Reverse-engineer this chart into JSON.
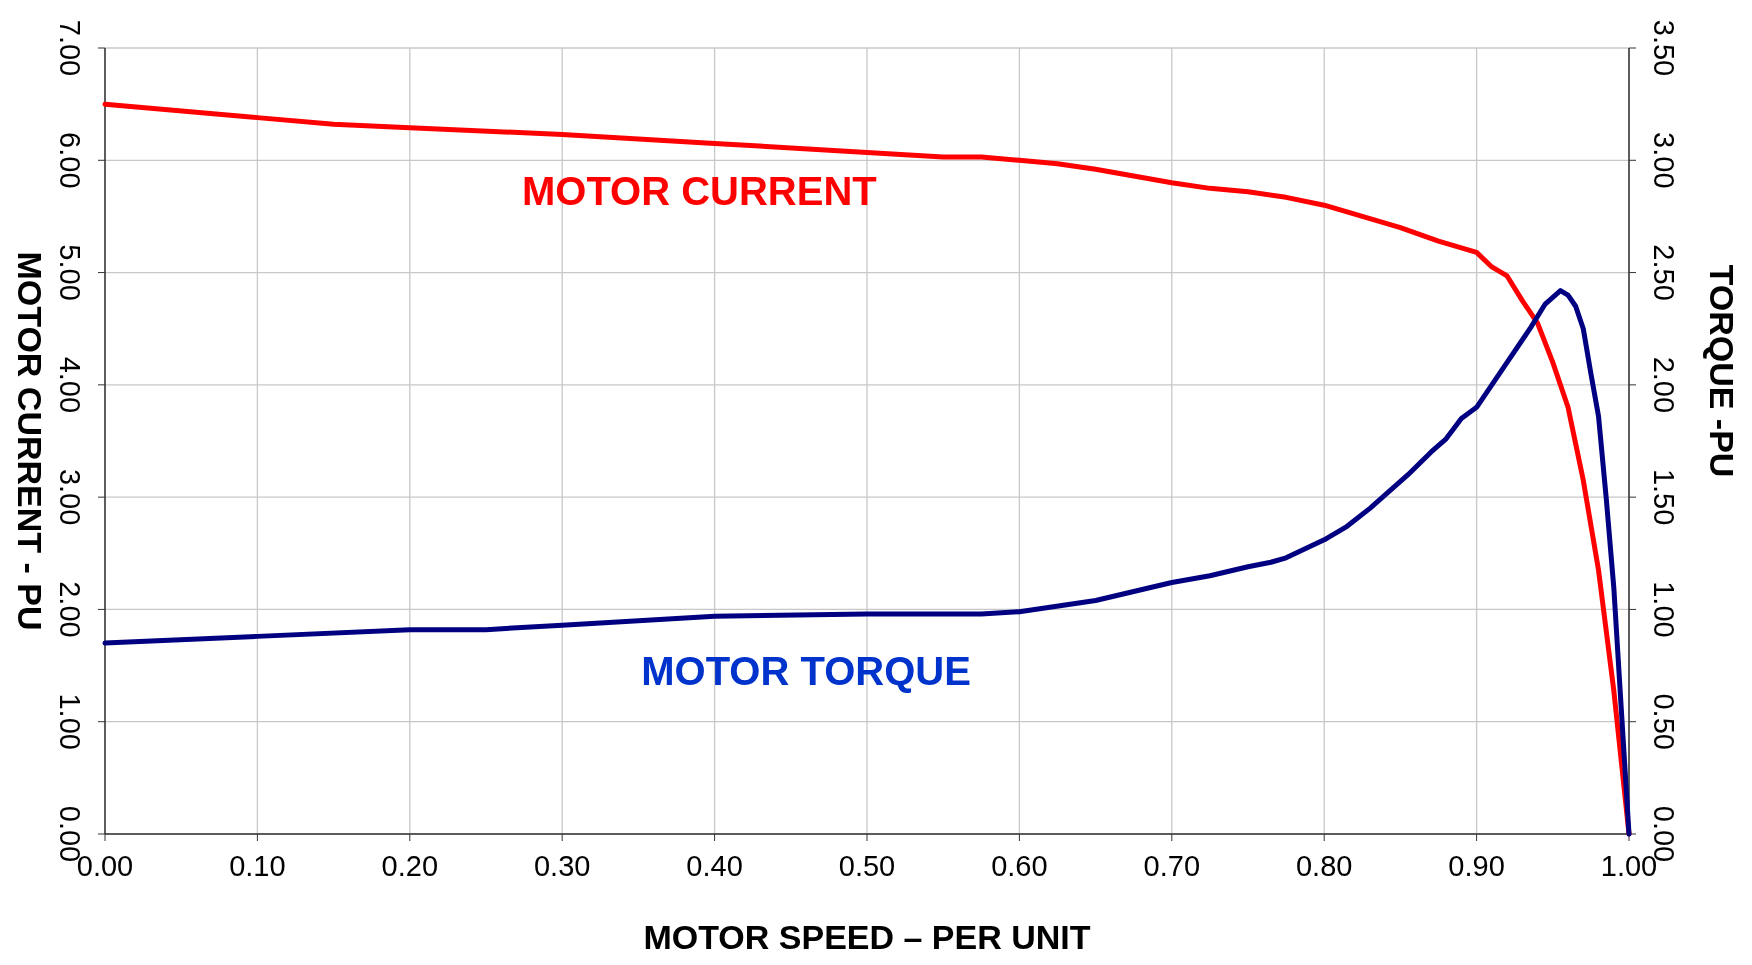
{
  "chart_data": {
    "type": "line",
    "xlabel": "MOTOR SPEED – PER UNIT",
    "ylabel": "MOTOR CURRENT - PU",
    "y2label": "TORQUE -PU",
    "xlim": [
      0,
      1
    ],
    "xticks": [
      {
        "value": 0,
        "label": "0.00"
      },
      {
        "value": 0.1,
        "label": "0.10"
      },
      {
        "value": 0.2,
        "label": "0.20"
      },
      {
        "value": 0.3,
        "label": "0.30"
      },
      {
        "value": 0.4,
        "label": "0.40"
      },
      {
        "value": 0.5,
        "label": "0.50"
      },
      {
        "value": 0.6,
        "label": "0.60"
      },
      {
        "value": 0.7,
        "label": "0.70"
      },
      {
        "value": 0.8,
        "label": "0.80"
      },
      {
        "value": 0.9,
        "label": "0.90"
      },
      {
        "value": 1,
        "label": "1.00"
      }
    ],
    "ylim": [
      0,
      7
    ],
    "yticks": [
      {
        "value": 0,
        "label": "0.00"
      },
      {
        "value": 1,
        "label": "1.00"
      },
      {
        "value": 2,
        "label": "2.00"
      },
      {
        "value": 3,
        "label": "3.00"
      },
      {
        "value": 4,
        "label": "4.00"
      },
      {
        "value": 5,
        "label": "5.00"
      },
      {
        "value": 6,
        "label": "6.00"
      },
      {
        "value": 7,
        "label": "7.00"
      }
    ],
    "y2lim": [
      0,
      3.5
    ],
    "y2ticks": [
      {
        "value": 0,
        "label": "0.00"
      },
      {
        "value": 0.5,
        "label": "0.50"
      },
      {
        "value": 1,
        "label": "1.00"
      },
      {
        "value": 1.5,
        "label": "1.50"
      },
      {
        "value": 2,
        "label": "2.00"
      },
      {
        "value": 2.5,
        "label": "2.50"
      },
      {
        "value": 3,
        "label": "3.00"
      },
      {
        "value": 3.5,
        "label": "3.50"
      }
    ],
    "grid": true,
    "marker": "none",
    "line_style": "solid",
    "series": [
      {
        "name": "MOTOR CURRENT",
        "color": "#ff0000",
        "x": [
          0,
          0.1,
          0.15,
          0.2,
          0.3,
          0.4,
          0.5,
          0.55,
          0.575,
          0.6,
          0.625,
          0.65,
          0.7,
          0.725,
          0.75,
          0.775,
          0.8,
          0.825,
          0.85,
          0.875,
          0.9,
          0.91,
          0.92,
          0.93,
          0.94,
          0.95,
          0.96,
          0.97,
          0.98,
          0.99,
          1
        ],
        "values": [
          6.5,
          6.38,
          6.32,
          6.29,
          6.23,
          6.15,
          6.07,
          6.03,
          6.03,
          6.0,
          5.97,
          5.92,
          5.8,
          5.75,
          5.72,
          5.67,
          5.6,
          5.5,
          5.4,
          5.28,
          5.18,
          5.05,
          4.97,
          4.75,
          4.55,
          4.2,
          3.8,
          3.15,
          2.35,
          1.28,
          0
        ]
      },
      {
        "name": "MOTOR TORQUE",
        "color": "#000080",
        "axis": "y2",
        "x": [
          0,
          0.1,
          0.2,
          0.25,
          0.3,
          0.35,
          0.4,
          0.5,
          0.575,
          0.6,
          0.65,
          0.7,
          0.725,
          0.75,
          0.765,
          0.775,
          0.8,
          0.815,
          0.83,
          0.855,
          0.87,
          0.88,
          0.89,
          0.9,
          0.91,
          0.92,
          0.935,
          0.945,
          0.955,
          0.96,
          0.965,
          0.97,
          0.975,
          0.98,
          0.985,
          0.99,
          0.995,
          1
        ],
        "values": [
          0.85,
          0.88,
          0.91,
          0.91,
          0.93,
          0.95,
          0.97,
          0.98,
          0.98,
          0.99,
          1.04,
          1.12,
          1.15,
          1.19,
          1.21,
          1.23,
          1.31,
          1.37,
          1.45,
          1.6,
          1.7,
          1.76,
          1.85,
          1.9,
          2.0,
          2.1,
          2.25,
          2.36,
          2.42,
          2.4,
          2.35,
          2.25,
          2.05,
          1.86,
          1.5,
          1.1,
          0.55,
          0
        ]
      }
    ]
  }
}
